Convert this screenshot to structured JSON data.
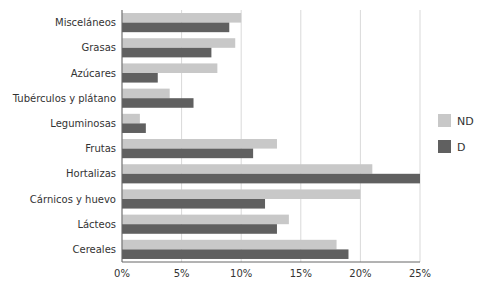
{
  "chart_data": {
    "type": "bar",
    "orientation": "horizontal",
    "categories": [
      "Cereales",
      "Lácteos",
      "Cárnicos y huevo",
      "Hortalizas",
      "Frutas",
      "Leguminosas",
      "Tubérculos y plátano",
      "Azúcares",
      "Grasas",
      "Misceláneos"
    ],
    "series": [
      {
        "name": "ND",
        "color": "#c8c8c8",
        "values": [
          18,
          14,
          20,
          21,
          13,
          1.5,
          4,
          8,
          9.5,
          10
        ]
      },
      {
        "name": "D",
        "color": "#606060",
        "values": [
          19,
          13,
          12,
          25,
          11,
          2,
          6,
          3,
          7.5,
          9
        ]
      }
    ],
    "xlim": [
      0,
      25
    ],
    "xticks": [
      {
        "value": 0,
        "label": "0%"
      },
      {
        "value": 5,
        "label": "5%"
      },
      {
        "value": 10,
        "label": "10%"
      },
      {
        "value": 15,
        "label": "15%"
      },
      {
        "value": 20,
        "label": "20%"
      },
      {
        "value": 25,
        "label": "25%"
      }
    ],
    "grid": true,
    "legend": "right"
  }
}
